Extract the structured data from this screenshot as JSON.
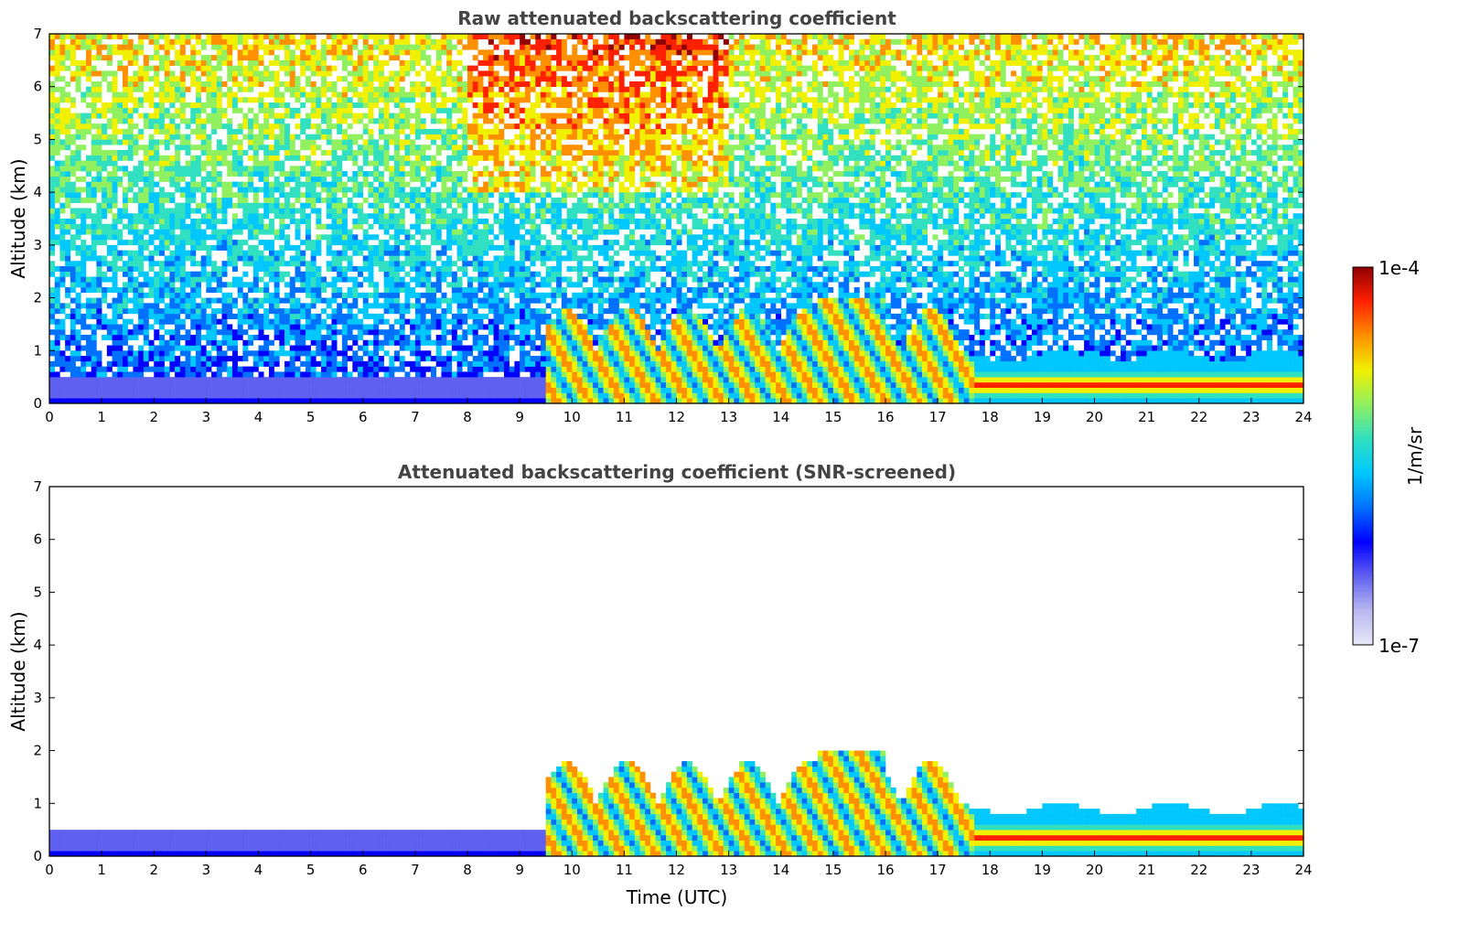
{
  "chart_data": [
    {
      "type": "heatmap",
      "title": "Raw attenuated backscattering coefficient",
      "xlabel": "",
      "ylabel": "Altitude (km)",
      "xlim": [
        0,
        24
      ],
      "ylim": [
        0,
        7
      ],
      "xticks": [
        "0",
        "1",
        "2",
        "3",
        "4",
        "5",
        "6",
        "7",
        "8",
        "9",
        "10",
        "11",
        "12",
        "13",
        "14",
        "15",
        "16",
        "17",
        "18",
        "19",
        "20",
        "21",
        "22",
        "23",
        "24"
      ],
      "yticks": [
        "0",
        "1",
        "2",
        "3",
        "4",
        "5",
        "6",
        "7"
      ],
      "variant": "raw"
    },
    {
      "type": "heatmap",
      "title": "Attenuated backscattering coefficient (SNR-screened)",
      "xlabel": "Time (UTC)",
      "ylabel": "Altitude (km)",
      "xlim": [
        0,
        24
      ],
      "ylim": [
        0,
        7
      ],
      "xticks": [
        "0",
        "1",
        "2",
        "3",
        "4",
        "5",
        "6",
        "7",
        "8",
        "9",
        "10",
        "11",
        "12",
        "13",
        "14",
        "15",
        "16",
        "17",
        "18",
        "19",
        "20",
        "21",
        "22",
        "23",
        "24"
      ],
      "yticks": [
        "0",
        "1",
        "2",
        "3",
        "4",
        "5",
        "6",
        "7"
      ],
      "variant": "screened"
    }
  ],
  "colorbar": {
    "max_label": "1e-4",
    "min_label": "1e-7",
    "unit_label": "1/m/sr",
    "scale": "log",
    "range": [
      1e-07,
      0.0001
    ]
  },
  "colors": {
    "title": "#444444",
    "colormap": [
      "#e8e8f8",
      "#b8b8f0",
      "#6060f0",
      "#0000ff",
      "#0070ff",
      "#00c8ff",
      "#30e0c0",
      "#90f060",
      "#f0f000",
      "#ff9000",
      "#ff2000",
      "#900000"
    ]
  }
}
